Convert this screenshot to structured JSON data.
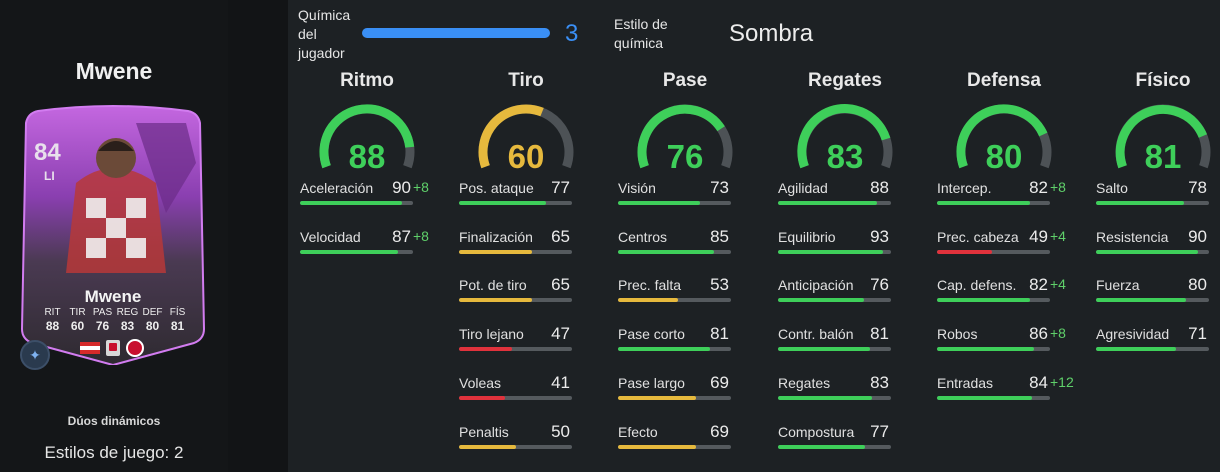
{
  "player": {
    "name": "Mwene",
    "card": {
      "overall": "84",
      "position": "LI",
      "name": "Mwene",
      "stat_labels": [
        "RIT",
        "TIR",
        "PAS",
        "REG",
        "DEF",
        "FÍS"
      ],
      "stat_values": [
        "88",
        "60",
        "76",
        "83",
        "80",
        "81"
      ]
    },
    "dynamic_duo": "Dúos dinámicos",
    "playstyles": "Estilos de juego: 2"
  },
  "chemistry": {
    "label": "Química del jugador",
    "value": "3",
    "max": 3,
    "style_label": "Estilo de química",
    "style_value": "Sombra"
  },
  "colors": {
    "green": "#3ecf5a",
    "yellow": "#e6b93d",
    "red": "#e0323c",
    "blue": "#3a8ff5",
    "track": "#555a5e"
  },
  "categories": [
    {
      "title": "Ritmo",
      "value": "88",
      "color": "#3ecf5a",
      "stats": [
        {
          "name": "Aceleración",
          "value": "90",
          "bonus": "+8",
          "color": "#3ecf5a"
        },
        {
          "name": "Velocidad",
          "value": "87",
          "bonus": "+8",
          "color": "#3ecf5a"
        }
      ]
    },
    {
      "title": "Tiro",
      "value": "60",
      "color": "#e6b93d",
      "stats": [
        {
          "name": "Pos. ataque",
          "value": "77",
          "bonus": "",
          "color": "#3ecf5a"
        },
        {
          "name": "Finalización",
          "value": "65",
          "bonus": "",
          "color": "#e6b93d"
        },
        {
          "name": "Pot. de tiro",
          "value": "65",
          "bonus": "",
          "color": "#e6b93d"
        },
        {
          "name": "Tiro lejano",
          "value": "47",
          "bonus": "",
          "color": "#e0323c"
        },
        {
          "name": "Voleas",
          "value": "41",
          "bonus": "",
          "color": "#e0323c"
        },
        {
          "name": "Penaltis",
          "value": "50",
          "bonus": "",
          "color": "#e6b93d"
        }
      ]
    },
    {
      "title": "Pase",
      "value": "76",
      "color": "#3ecf5a",
      "stats": [
        {
          "name": "Visión",
          "value": "73",
          "bonus": "",
          "color": "#3ecf5a"
        },
        {
          "name": "Centros",
          "value": "85",
          "bonus": "",
          "color": "#3ecf5a"
        },
        {
          "name": "Prec. falta",
          "value": "53",
          "bonus": "",
          "color": "#e6b93d"
        },
        {
          "name": "Pase corto",
          "value": "81",
          "bonus": "",
          "color": "#3ecf5a"
        },
        {
          "name": "Pase largo",
          "value": "69",
          "bonus": "",
          "color": "#e6b93d"
        },
        {
          "name": "Efecto",
          "value": "69",
          "bonus": "",
          "color": "#e6b93d"
        }
      ]
    },
    {
      "title": "Regates",
      "value": "83",
      "color": "#3ecf5a",
      "stats": [
        {
          "name": "Agilidad",
          "value": "88",
          "bonus": "",
          "color": "#3ecf5a"
        },
        {
          "name": "Equilibrio",
          "value": "93",
          "bonus": "",
          "color": "#3ecf5a"
        },
        {
          "name": "Anticipación",
          "value": "76",
          "bonus": "",
          "color": "#3ecf5a"
        },
        {
          "name": "Contr. balón",
          "value": "81",
          "bonus": "",
          "color": "#3ecf5a"
        },
        {
          "name": "Regates",
          "value": "83",
          "bonus": "",
          "color": "#3ecf5a"
        },
        {
          "name": "Compostura",
          "value": "77",
          "bonus": "",
          "color": "#3ecf5a"
        }
      ]
    },
    {
      "title": "Defensa",
      "value": "80",
      "color": "#3ecf5a",
      "stats": [
        {
          "name": "Intercep.",
          "value": "82",
          "bonus": "+8",
          "color": "#3ecf5a"
        },
        {
          "name": "Prec. cabeza",
          "value": "49",
          "bonus": "+4",
          "color": "#e0323c"
        },
        {
          "name": "Cap. defens.",
          "value": "82",
          "bonus": "+4",
          "color": "#3ecf5a"
        },
        {
          "name": "Robos",
          "value": "86",
          "bonus": "+8",
          "color": "#3ecf5a"
        },
        {
          "name": "Entradas",
          "value": "84",
          "bonus": "+12",
          "color": "#3ecf5a"
        }
      ]
    },
    {
      "title": "Físico",
      "value": "81",
      "color": "#3ecf5a",
      "stats": [
        {
          "name": "Salto",
          "value": "78",
          "bonus": "",
          "color": "#3ecf5a"
        },
        {
          "name": "Resistencia",
          "value": "90",
          "bonus": "",
          "color": "#3ecf5a"
        },
        {
          "name": "Fuerza",
          "value": "80",
          "bonus": "",
          "color": "#3ecf5a"
        },
        {
          "name": "Agresividad",
          "value": "71",
          "bonus": "",
          "color": "#3ecf5a"
        }
      ]
    }
  ]
}
